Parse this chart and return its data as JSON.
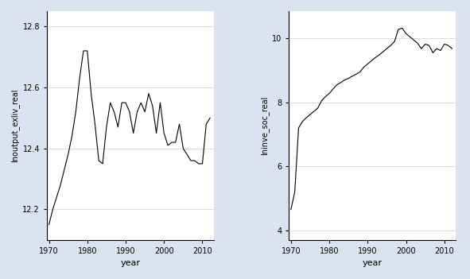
{
  "left_years": [
    1970,
    1971,
    1972,
    1973,
    1974,
    1975,
    1976,
    1977,
    1978,
    1979,
    1980,
    1981,
    1982,
    1983,
    1984,
    1985,
    1986,
    1987,
    1988,
    1989,
    1990,
    1991,
    1992,
    1993,
    1994,
    1995,
    1996,
    1997,
    1998,
    1999,
    2000,
    2001,
    2002,
    2003,
    2004,
    2005,
    2006,
    2007,
    2008,
    2009,
    2010,
    2011,
    2012
  ],
  "left_values": [
    12.15,
    12.2,
    12.24,
    12.28,
    12.33,
    12.38,
    12.44,
    12.52,
    12.63,
    12.72,
    12.72,
    12.58,
    12.48,
    12.36,
    12.35,
    12.47,
    12.55,
    12.52,
    12.47,
    12.55,
    12.55,
    12.52,
    12.45,
    12.52,
    12.55,
    12.52,
    12.58,
    12.54,
    12.45,
    12.55,
    12.45,
    12.41,
    12.42,
    12.42,
    12.48,
    12.4,
    12.38,
    12.36,
    12.36,
    12.35,
    12.35,
    12.48,
    12.5
  ],
  "left_ylabel": "lnoutput_exliv_real",
  "left_xlabel": "year",
  "left_yticks": [
    12.2,
    12.4,
    12.6,
    12.8
  ],
  "left_xticks": [
    1970,
    1980,
    1990,
    2000,
    2010
  ],
  "left_ylim": [
    12.1,
    12.85
  ],
  "left_xlim": [
    1969.5,
    2013
  ],
  "right_years": [
    1970,
    1971,
    1972,
    1973,
    1974,
    1975,
    1976,
    1977,
    1978,
    1979,
    1980,
    1981,
    1982,
    1983,
    1984,
    1985,
    1986,
    1987,
    1988,
    1989,
    1990,
    1991,
    1992,
    1993,
    1994,
    1995,
    1996,
    1997,
    1998,
    1999,
    2000,
    2001,
    2002,
    2003,
    2004,
    2005,
    2006,
    2007,
    2008,
    2009,
    2010,
    2011,
    2012
  ],
  "right_values": [
    4.65,
    5.2,
    7.2,
    7.4,
    7.52,
    7.62,
    7.72,
    7.82,
    8.05,
    8.18,
    8.28,
    8.42,
    8.55,
    8.62,
    8.7,
    8.75,
    8.82,
    8.88,
    8.95,
    9.1,
    9.2,
    9.3,
    9.4,
    9.48,
    9.58,
    9.68,
    9.78,
    9.9,
    10.28,
    10.32,
    10.15,
    10.05,
    9.95,
    9.85,
    9.68,
    9.82,
    9.78,
    9.55,
    9.68,
    9.62,
    9.82,
    9.78,
    9.68
  ],
  "right_ylabel": "lninve_soc_real",
  "right_xlabel": "year",
  "right_yticks": [
    4,
    6,
    8,
    10
  ],
  "right_xticks": [
    1970,
    1980,
    1990,
    2000,
    2010
  ],
  "right_ylim": [
    3.7,
    10.85
  ],
  "right_xlim": [
    1969.5,
    2013
  ],
  "bg_color": "#d9e4f0",
  "plot_bg_color": "#ffffff",
  "line_color": "#000000",
  "line_width": 0.8,
  "grid_color": "#d0d0d0",
  "grid_lw": 0.5,
  "tick_labelsize": 7,
  "ylabel_fontsize": 7,
  "xlabel_fontsize": 8
}
